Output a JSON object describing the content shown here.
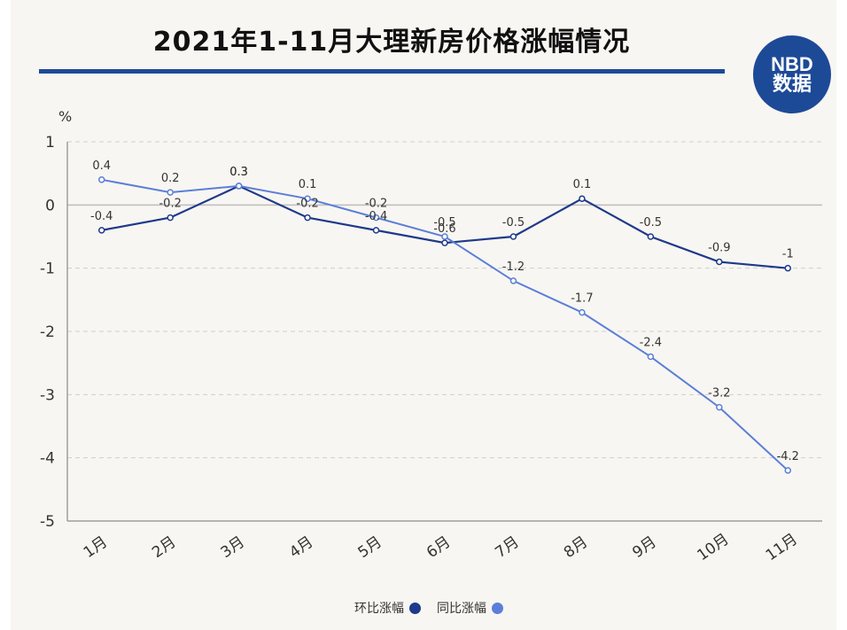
{
  "header": {
    "title": "2021年1-11月大理新房价格涨幅情况",
    "logo_line1": "NBD",
    "logo_line2": "数据"
  },
  "colors": {
    "background": "#f8f6f2",
    "brand": "#1d4a97",
    "series_mom": "#1e3a8a",
    "series_yoy": "#5b7fd8"
  },
  "chart_data": {
    "type": "line",
    "unit": "%",
    "categories": [
      "1月",
      "2月",
      "3月",
      "4月",
      "5月",
      "6月",
      "7月",
      "8月",
      "9月",
      "10月",
      "11月"
    ],
    "ylim": [
      -5,
      1
    ],
    "yticks": [
      1,
      0,
      -1,
      -2,
      -3,
      -4,
      -5
    ],
    "grid": "horizontal-dashed",
    "legend_position": "bottom-center",
    "series": [
      {
        "name": "环比涨幅",
        "values": [
          -0.4,
          -0.2,
          0.3,
          -0.2,
          -0.4,
          -0.6,
          -0.5,
          0.1,
          -0.5,
          -0.9,
          -1
        ],
        "labels": [
          "-0.4",
          "-0.2",
          "0.3",
          "-0.2",
          "-0.4",
          "-0.6",
          "-0.5",
          "0.1",
          "-0.5",
          "-0.9",
          "-1"
        ]
      },
      {
        "name": "同比涨幅",
        "values": [
          0.4,
          0.2,
          0.3,
          0.1,
          -0.2,
          -0.5,
          -1.2,
          -1.7,
          -2.4,
          -3.2,
          -4.2
        ],
        "labels": [
          "0.4",
          "0.2",
          "0.3",
          "0.1",
          "-0.2",
          "-0.5",
          "-1.2",
          "-1.7",
          "-2.4",
          "-3.2",
          "-4.2"
        ]
      }
    ]
  }
}
